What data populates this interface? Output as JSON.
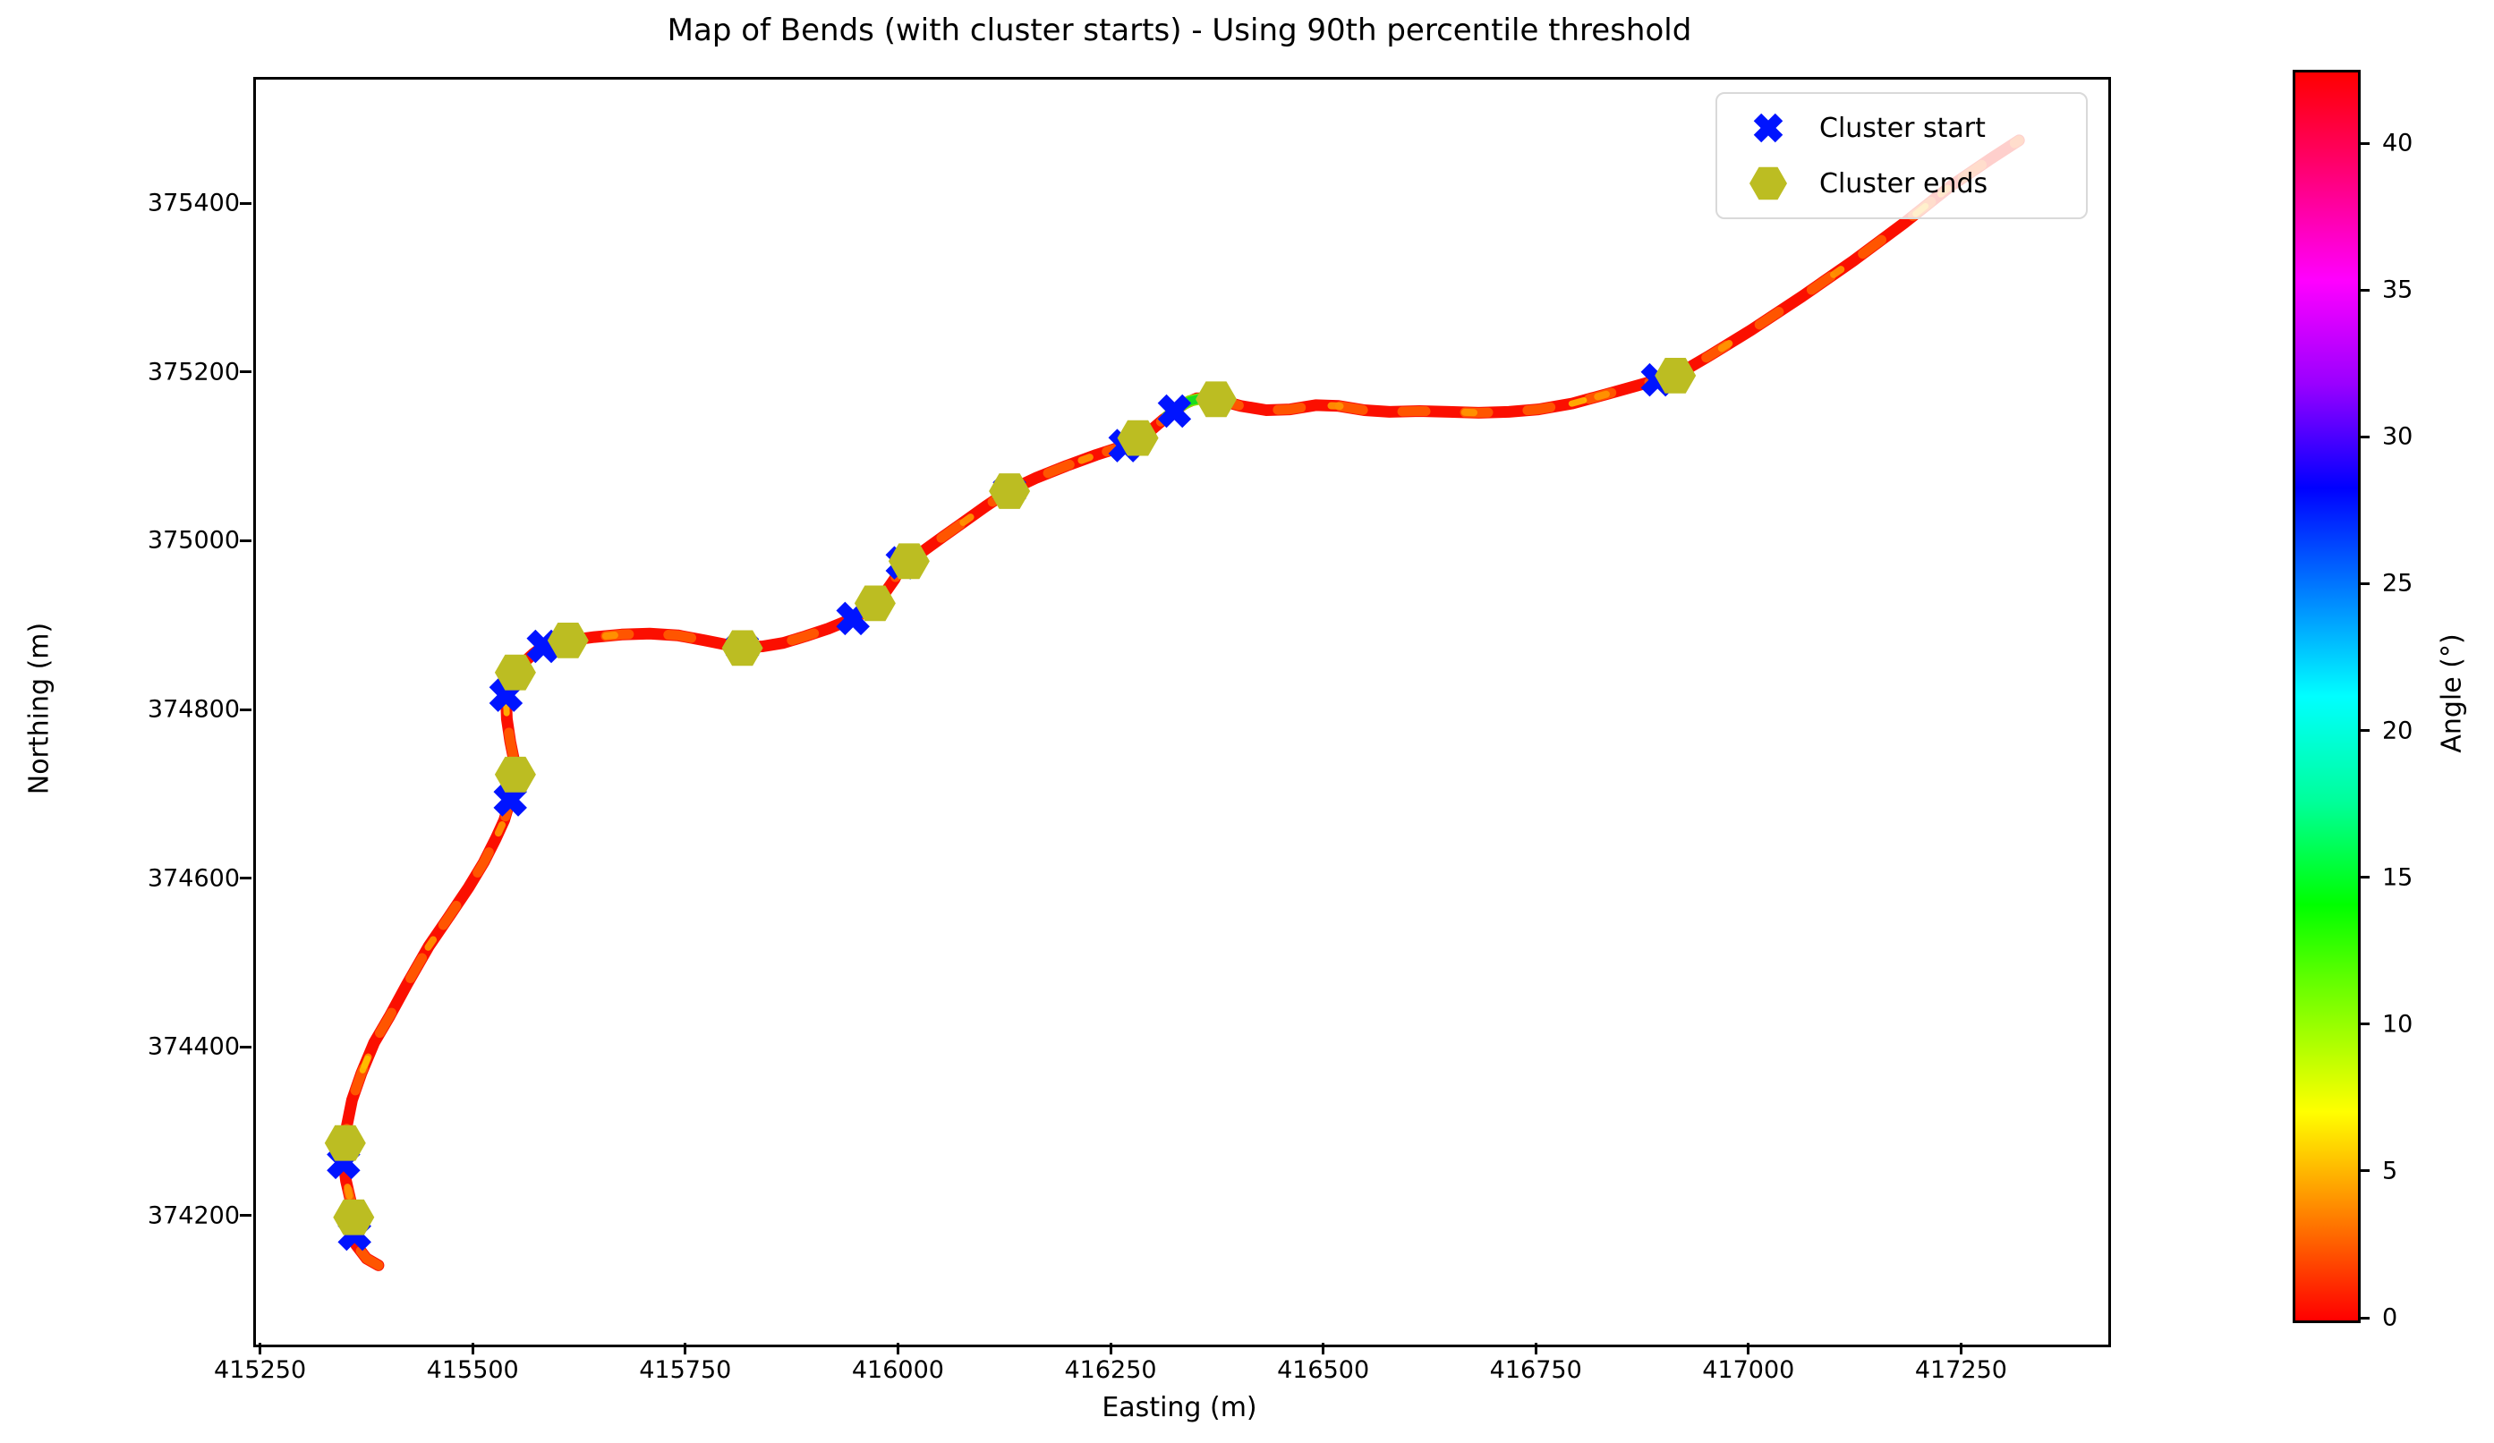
{
  "title": "Map of Bends (with cluster starts) - Using 90th percentile threshold",
  "axes": {
    "xlabel": "Easting (m)",
    "ylabel": "Northing (m)",
    "xticks": [
      415250,
      415500,
      415750,
      416000,
      416250,
      416500,
      416750,
      417000,
      417250
    ],
    "yticks": [
      375400,
      375200,
      375000,
      374800,
      374600,
      374400,
      374200
    ],
    "xlim": [
      415242,
      417420
    ],
    "ylim": [
      374050,
      375550
    ]
  },
  "legend": {
    "items": [
      {
        "label": "Cluster start",
        "marker": "x-marker",
        "color": "#0014ff"
      },
      {
        "label": "Cluster ends",
        "marker": "hexagon-marker",
        "color": "#bcbd22"
      }
    ]
  },
  "colorbar": {
    "label": "Angle (°)",
    "ticks": [
      0,
      5,
      10,
      15,
      20,
      25,
      30,
      35,
      40
    ],
    "vmin": 0,
    "vmax": 42.5,
    "colormap": "hsv"
  },
  "colors": {
    "track_base": "#fb0f00",
    "track_mottle1": "#ff5a00",
    "track_mottle2": "#ff9700",
    "track_mottle3": "#ffc400",
    "high_angle": "#19dd1f",
    "high_angle_edge": "#8fe000",
    "cluster_start": "#0014ff",
    "cluster_end": "#bcbd22"
  },
  "chart_data": {
    "type": "line",
    "title": "Map of Bends (with cluster starts) - Using 90th percentile threshold",
    "xlabel": "Easting (m)",
    "ylabel": "Northing (m)",
    "colorbar_label": "Angle (°)",
    "colorbar_range": [
      0,
      42.5
    ],
    "track_color_note": "track colored by bend angle, mostly 0-6 deg (red-orange), one ~15 deg green segment near (416340, 375168)",
    "track": [
      [
        415386,
        374144
      ],
      [
        415372,
        374152
      ],
      [
        415360,
        374168
      ],
      [
        415358,
        374181
      ],
      [
        415356,
        374196
      ],
      [
        415357,
        374201
      ],
      [
        415353,
        374222
      ],
      [
        415348,
        374244
      ],
      [
        415345,
        374266
      ],
      [
        415346,
        374278
      ],
      [
        415347,
        374289
      ],
      [
        415349,
        374310
      ],
      [
        415355,
        374340
      ],
      [
        415366,
        374372
      ],
      [
        415381,
        374408
      ],
      [
        415399,
        374439
      ],
      [
        415420,
        374478
      ],
      [
        415445,
        374522
      ],
      [
        415468,
        374556
      ],
      [
        415492,
        374592
      ],
      [
        415510,
        374622
      ],
      [
        415524,
        374650
      ],
      [
        415534,
        374672
      ],
      [
        415541,
        374696
      ],
      [
        415546,
        374712
      ],
      [
        415547,
        374726
      ],
      [
        415545,
        374745
      ],
      [
        415541,
        374765
      ],
      [
        415537,
        374792
      ],
      [
        415536,
        374820
      ],
      [
        415539,
        374835
      ],
      [
        415547,
        374847
      ],
      [
        415557,
        374859
      ],
      [
        415568,
        374869
      ],
      [
        415580,
        374878
      ],
      [
        415594,
        374883
      ],
      [
        415609,
        374885
      ],
      [
        415640,
        374889
      ],
      [
        415672,
        374892
      ],
      [
        415705,
        374893
      ],
      [
        415738,
        374891
      ],
      [
        415770,
        374885
      ],
      [
        415795,
        374880
      ],
      [
        415814,
        374877
      ],
      [
        415838,
        374878
      ],
      [
        415862,
        374882
      ],
      [
        415888,
        374890
      ],
      [
        415915,
        374899
      ],
      [
        415944,
        374911
      ],
      [
        415958,
        374919
      ],
      [
        415970,
        374929
      ],
      [
        415982,
        374942
      ],
      [
        415993,
        374958
      ],
      [
        416002,
        374977
      ],
      [
        416010,
        374979
      ],
      [
        416028,
        374992
      ],
      [
        416050,
        375008
      ],
      [
        416075,
        375026
      ],
      [
        416100,
        375044
      ],
      [
        416128,
        375063
      ],
      [
        416160,
        375078
      ],
      [
        416195,
        375092
      ],
      [
        416230,
        375105
      ],
      [
        416264,
        375116
      ],
      [
        416279,
        375125
      ],
      [
        416293,
        375133
      ],
      [
        416308,
        375146
      ],
      [
        416322,
        375157
      ],
      [
        416334,
        375166
      ],
      [
        416348,
        375172
      ],
      [
        416360,
        375172
      ],
      [
        416371,
        375171
      ],
      [
        416400,
        375163
      ],
      [
        416430,
        375158
      ],
      [
        416458,
        375159
      ],
      [
        416488,
        375164
      ],
      [
        416515,
        375163
      ],
      [
        416545,
        375158
      ],
      [
        416575,
        375156
      ],
      [
        416610,
        375157
      ],
      [
        416645,
        375156
      ],
      [
        416680,
        375155
      ],
      [
        416715,
        375156
      ],
      [
        416750,
        375159
      ],
      [
        416790,
        375166
      ],
      [
        416830,
        375177
      ],
      [
        416862,
        375186
      ],
      [
        416890,
        375194
      ],
      [
        416911,
        375199
      ],
      [
        416950,
        375222
      ],
      [
        417000,
        375253
      ],
      [
        417060,
        375293
      ],
      [
        417120,
        375335
      ],
      [
        417180,
        375380
      ],
      [
        417235,
        375424
      ],
      [
        417280,
        375455
      ],
      [
        417315,
        375478
      ]
    ],
    "high_angle_segment": [
      [
        416313,
        375150
      ],
      [
        416326,
        375161
      ],
      [
        416340,
        375169
      ],
      [
        416354,
        375172
      ]
    ],
    "cluster_starts": [
      [
        415358,
        374181
      ],
      [
        415345,
        374266
      ],
      [
        415541,
        374696
      ],
      [
        415536,
        374820
      ],
      [
        415580,
        374878
      ],
      [
        415814,
        374877
      ],
      [
        415944,
        374911
      ],
      [
        416002,
        374977
      ],
      [
        416128,
        375063
      ],
      [
        416264,
        375116
      ],
      [
        416322,
        375157
      ],
      [
        416890,
        375194
      ]
    ],
    "cluster_ends": [
      [
        415357,
        374201
      ],
      [
        415347,
        374289
      ],
      [
        415547,
        374726
      ],
      [
        415547,
        374847
      ],
      [
        415609,
        374885
      ],
      [
        415814,
        374876
      ],
      [
        415970,
        374929
      ],
      [
        416010,
        374979
      ],
      [
        416128,
        375062
      ],
      [
        416279,
        375125
      ],
      [
        416371,
        375171
      ],
      [
        416911,
        375199
      ]
    ]
  }
}
